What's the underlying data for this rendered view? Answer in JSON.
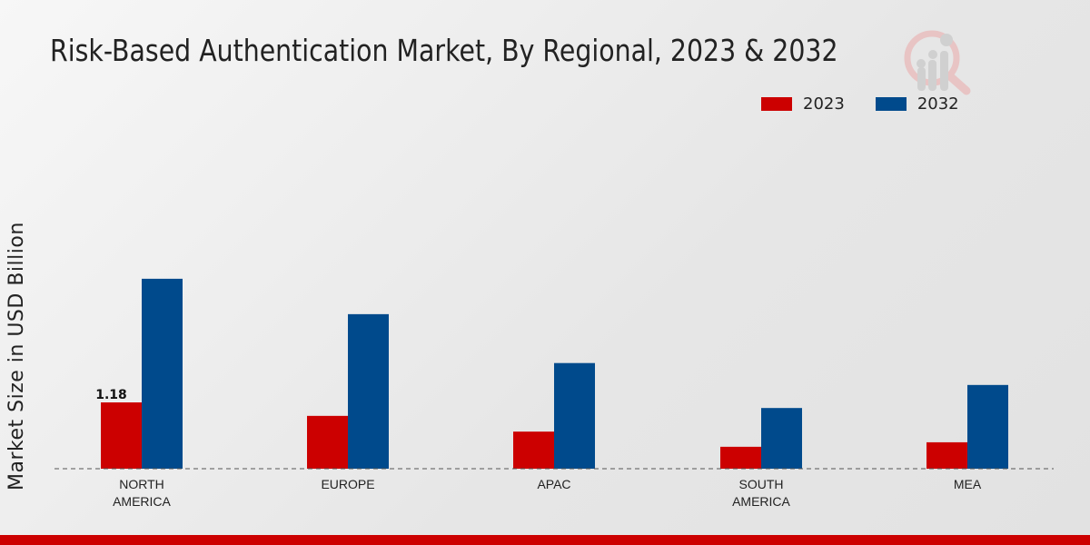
{
  "chart_data": {
    "type": "bar",
    "title": "Risk-Based Authentication Market, By Regional, 2023 & 2032",
    "xlabel": "",
    "ylabel": "Market Size in USD Billion",
    "categories": [
      "NORTH AMERICA",
      "EUROPE",
      "APAC",
      "SOUTH AMERICA",
      "MEA"
    ],
    "category_lines": [
      [
        "NORTH",
        "AMERICA"
      ],
      [
        "EUROPE"
      ],
      [
        "APAC"
      ],
      [
        "SOUTH",
        "AMERICA"
      ],
      [
        "MEA"
      ]
    ],
    "series": [
      {
        "name": "2023",
        "color": "#cc0000",
        "values": [
          1.18,
          0.94,
          0.66,
          0.39,
          0.47
        ]
      },
      {
        "name": "2032",
        "color": "#004a8c",
        "values": [
          3.38,
          2.75,
          1.88,
          1.08,
          1.49
        ]
      }
    ],
    "data_labels": [
      {
        "series": 0,
        "index": 0,
        "text": "1.18"
      }
    ],
    "ylim": [
      0,
      4.5
    ],
    "grid": false,
    "legend_position": "top-right"
  }
}
